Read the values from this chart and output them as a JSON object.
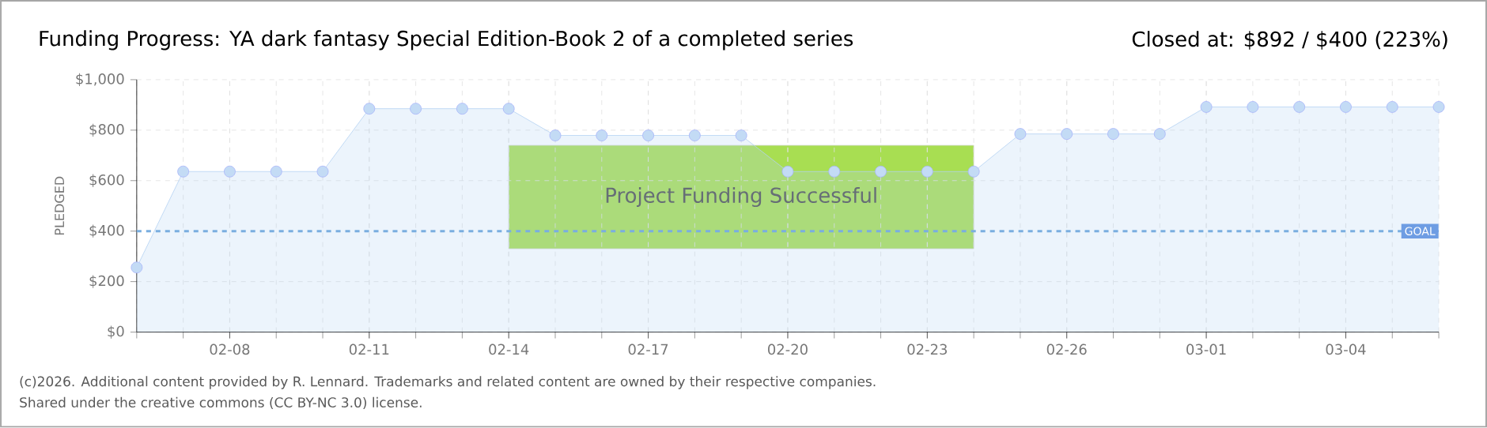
{
  "chart_data": {
    "type": "area",
    "title": "Funding Progress: YA dark fantasy Special Edition-Book 2 of a completed series",
    "subtitle": "Closed at: $892 / $400 (223%)",
    "ylabel": "PLEDGED",
    "categories": [
      null,
      null,
      "02-08",
      null,
      null,
      "02-11",
      null,
      null,
      "02-14",
      null,
      null,
      "02-17",
      null,
      null,
      "02-20",
      null,
      null,
      "02-23",
      null,
      null,
      "02-26",
      null,
      null,
      "03-01",
      null,
      null,
      "03-04",
      null,
      null
    ],
    "series": [
      {
        "color": "#b4d2f2",
        "values": [
          256,
          636,
          636,
          636,
          636,
          885,
          885,
          885,
          885,
          779,
          779,
          779,
          779,
          779,
          636,
          636,
          636,
          636,
          636,
          785,
          785,
          785,
          785,
          892,
          892,
          892,
          892,
          892,
          892
        ]
      }
    ],
    "ylim": [
      0,
      1000
    ],
    "yticks": [
      {
        "value": 0,
        "label": "$0"
      },
      {
        "value": 200,
        "label": "$200"
      },
      {
        "value": 400,
        "label": "$400"
      },
      {
        "value": 600,
        "label": "$600"
      },
      {
        "value": 800,
        "label": "$800"
      },
      {
        "value": 1000,
        "label": "$1,000"
      }
    ],
    "grid": true,
    "marker": "circle",
    "line_style": "solid",
    "ref_lines": [
      {
        "axis": "y",
        "value": 400,
        "label": "GOAL",
        "color": "#7aaee0",
        "line_style": "dashed"
      }
    ],
    "annotations": [
      "Project Funding Successful",
      "(c)2026. Additional content provided by R. Lennard. Trademarks and related content are owned by their respective companies.",
      "Shared under the creative commons (CC BY-NC 3.0) license."
    ]
  }
}
